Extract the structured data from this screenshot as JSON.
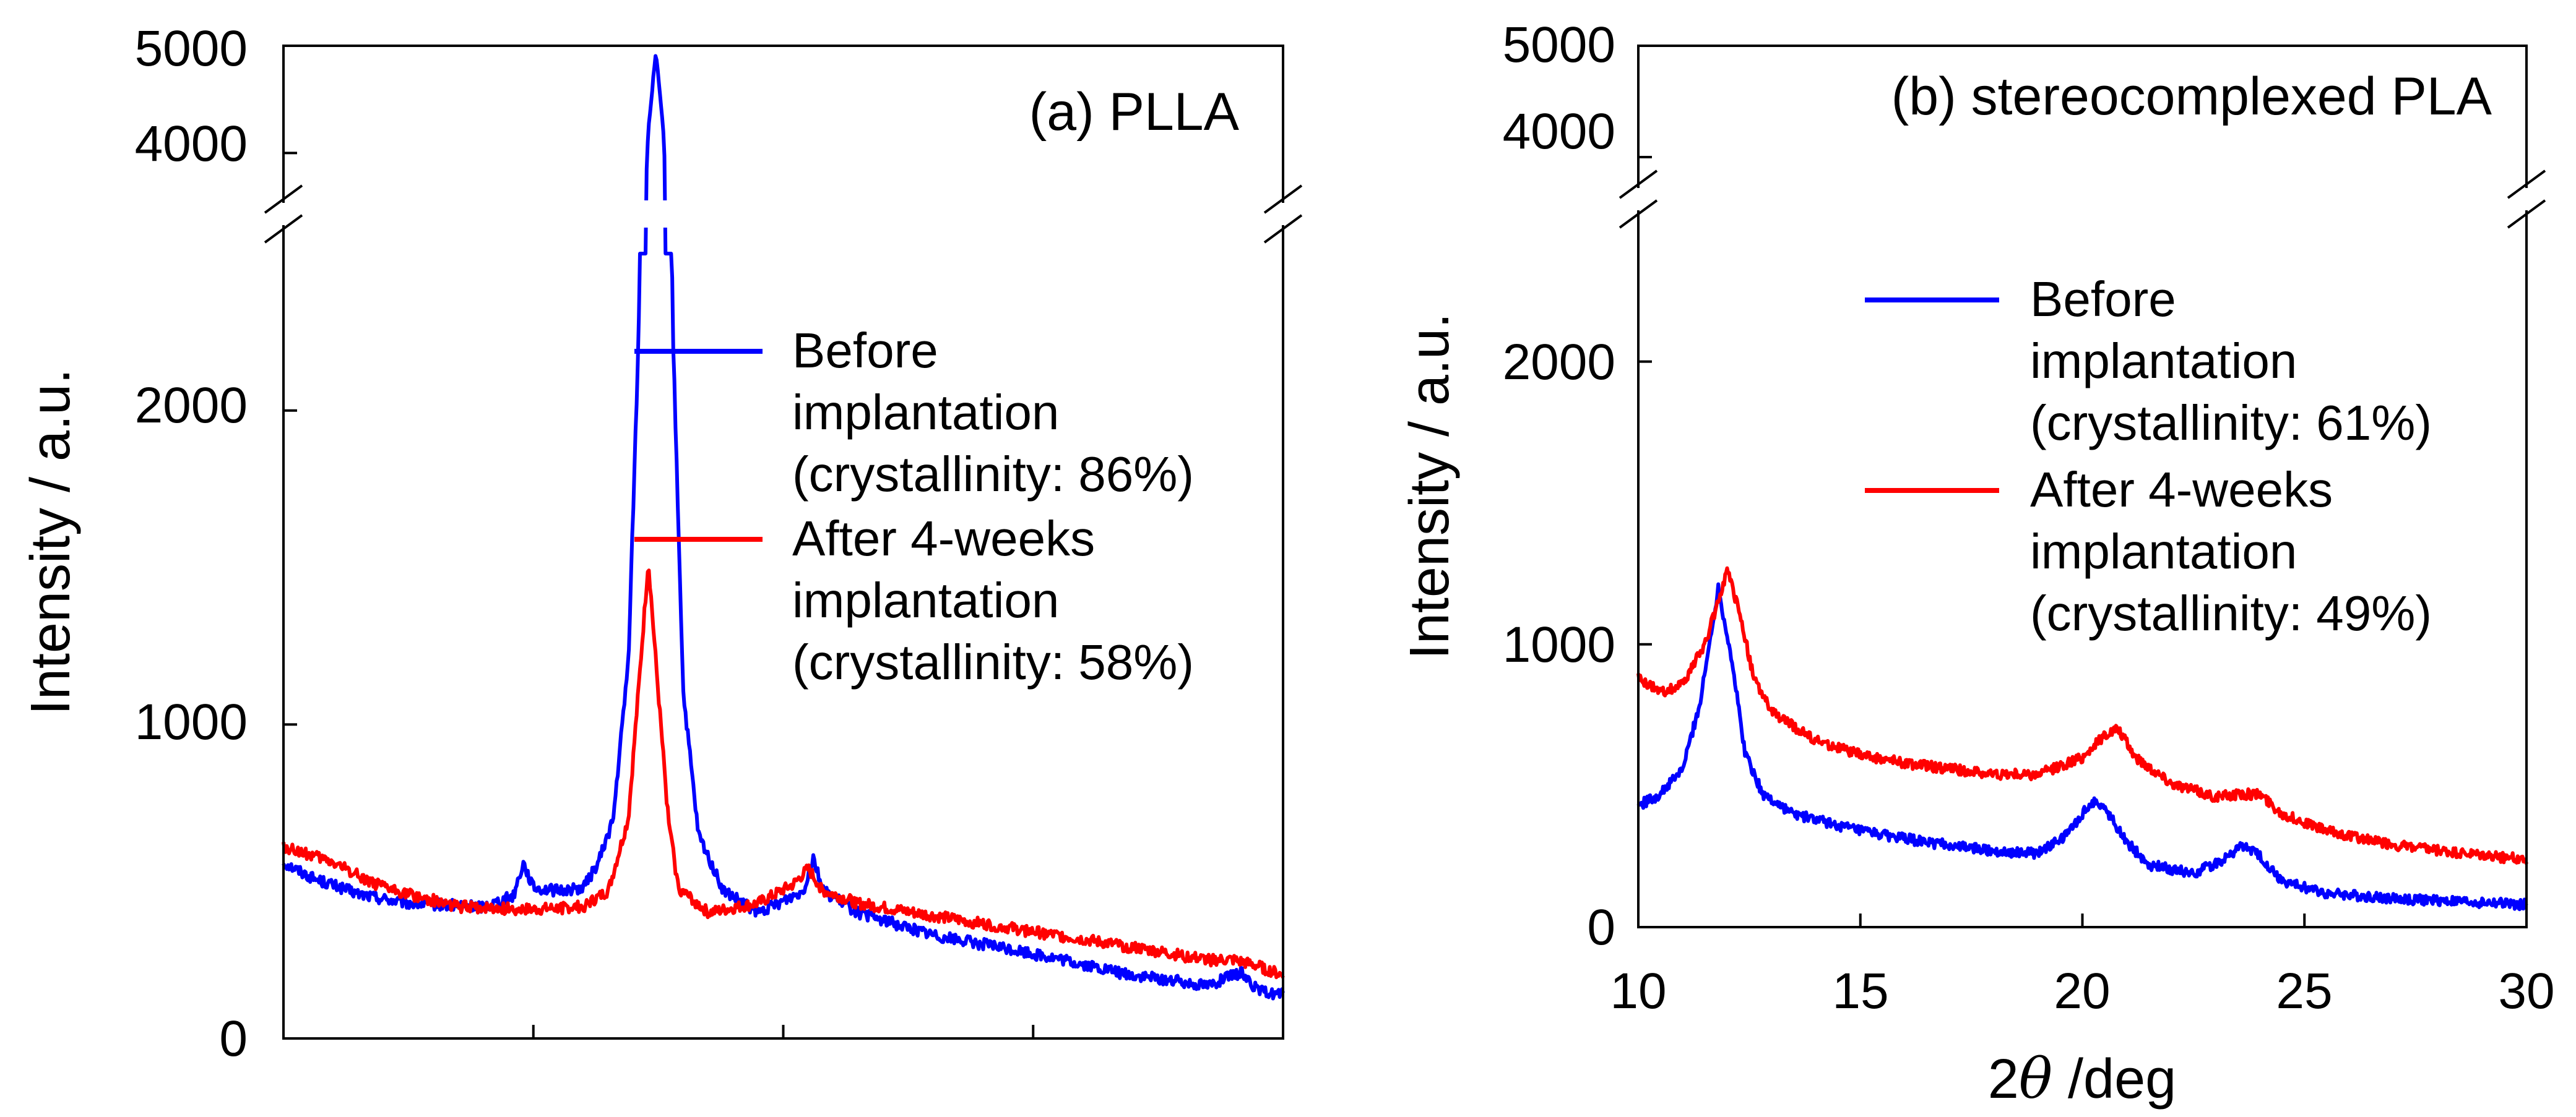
{
  "chart_data": [
    {
      "type": "line",
      "panel_label": "(a) PLLA",
      "ylabel": "Intensity / a.u.",
      "xlabel": "",
      "xlim": [
        10,
        30
      ],
      "ylim_lower": [
        0,
        2500
      ],
      "ylim_upper": [
        3800,
        5000
      ],
      "y_ticks_lower": [
        "0",
        "1000",
        "2000"
      ],
      "y_ticks_upper": [
        "4000",
        "5000"
      ],
      "x_ticks": [
        "",
        "",
        "",
        "",
        ""
      ],
      "grid": false,
      "legend_position": "center-right",
      "series": [
        {
          "name": "Before implantation (crystallinity: 86%)",
          "legend_lines": [
            "Before",
            "implantation",
            "(crystallinity: 86%)"
          ],
          "color": "#0000ff",
          "points": [
            [
              10,
              560
            ],
            [
              10.6,
              510
            ],
            [
              11.5,
              460
            ],
            [
              12.5,
              430
            ],
            [
              14,
              420
            ],
            [
              14.6,
              455
            ],
            [
              14.8,
              560
            ],
            [
              15,
              480
            ],
            [
              15.5,
              470
            ],
            [
              16,
              480
            ],
            [
              16.3,
              560
            ],
            [
              16.6,
              700
            ],
            [
              16.9,
              1200
            ],
            [
              17.1,
              2200
            ],
            [
              17.3,
              4200
            ],
            [
              17.45,
              4950
            ],
            [
              17.6,
              4200
            ],
            [
              17.8,
              2200
            ],
            [
              18,
              1100
            ],
            [
              18.3,
              650
            ],
            [
              18.8,
              470
            ],
            [
              19.5,
              400
            ],
            [
              20.4,
              470
            ],
            [
              20.6,
              580
            ],
            [
              20.8,
              470
            ],
            [
              21.5,
              400
            ],
            [
              23,
              330
            ],
            [
              25,
              270
            ],
            [
              27,
              200
            ],
            [
              28.5,
              170
            ],
            [
              29,
              200
            ],
            [
              29.2,
              210
            ],
            [
              29.5,
              150
            ],
            [
              30,
              140
            ]
          ]
        },
        {
          "name": "After 4-weeks implantation (crystallinity: 58%)",
          "legend_lines": [
            "After 4-weeks",
            "implantation",
            "(crystallinity: 58%)"
          ],
          "color": "#ff0000",
          "points": [
            [
              10,
              610
            ],
            [
              11,
              560
            ],
            [
              12,
              480
            ],
            [
              13.5,
              420
            ],
            [
              15,
              410
            ],
            [
              16,
              420
            ],
            [
              16.5,
              470
            ],
            [
              16.9,
              700
            ],
            [
              17.1,
              1100
            ],
            [
              17.3,
              1520
            ],
            [
              17.5,
              1100
            ],
            [
              17.7,
              700
            ],
            [
              17.9,
              480
            ],
            [
              18.5,
              400
            ],
            [
              19.5,
              430
            ],
            [
              20.2,
              490
            ],
            [
              20.5,
              540
            ],
            [
              20.8,
              470
            ],
            [
              21.5,
              430
            ],
            [
              23,
              390
            ],
            [
              25,
              340
            ],
            [
              27,
              290
            ],
            [
              28.5,
              250
            ],
            [
              29,
              250
            ],
            [
              29.5,
              230
            ],
            [
              30,
              200
            ]
          ]
        }
      ]
    },
    {
      "type": "line",
      "panel_label": "(b) stereocomplexed PLA",
      "ylabel": "Intensity / a.u.",
      "xlabel": "2θ /deg",
      "xlabel_parts": [
        "2",
        "θ",
        " /deg"
      ],
      "xlim": [
        10,
        30
      ],
      "ylim_lower": [
        0,
        2500
      ],
      "ylim_upper": [
        3800,
        5000
      ],
      "y_ticks_lower": [
        "0",
        "1000",
        "2000"
      ],
      "y_ticks_upper": [
        "4000",
        "5000"
      ],
      "x_ticks": [
        "10",
        "15",
        "20",
        "25",
        "30"
      ],
      "grid": false,
      "legend_position": "upper-right",
      "series": [
        {
          "name": "Before implantation (crystallinity: 61%)",
          "legend_lines": [
            "Before",
            "implantation",
            "(crystallinity: 61%)"
          ],
          "color": "#0000ff",
          "points": [
            [
              10,
              430
            ],
            [
              10.5,
              470
            ],
            [
              11,
              560
            ],
            [
              11.4,
              800
            ],
            [
              11.8,
              1200
            ],
            [
              12.1,
              950
            ],
            [
              12.4,
              620
            ],
            [
              12.8,
              470
            ],
            [
              13.5,
              400
            ],
            [
              15,
              340
            ],
            [
              16.5,
              300
            ],
            [
              18,
              270
            ],
            [
              19,
              260
            ],
            [
              19.6,
              320
            ],
            [
              20.1,
              420
            ],
            [
              20.3,
              450
            ],
            [
              20.6,
              400
            ],
            [
              21,
              300
            ],
            [
              21.5,
              220
            ],
            [
              22.5,
              190
            ],
            [
              23.2,
              240
            ],
            [
              23.6,
              290
            ],
            [
              24,
              250
            ],
            [
              24.5,
              160
            ],
            [
              25.5,
              120
            ],
            [
              27,
              100
            ],
            [
              28.5,
              90
            ],
            [
              30,
              80
            ]
          ]
        },
        {
          "name": "After 4-weeks implantation (crystallinity: 49%)",
          "legend_lines": [
            "After 4-weeks",
            "implantation",
            "(crystallinity: 49%)"
          ],
          "color": "#ff0000",
          "points": [
            [
              10,
              880
            ],
            [
              10.5,
              830
            ],
            [
              11,
              860
            ],
            [
              11.5,
              1000
            ],
            [
              12,
              1260
            ],
            [
              12.3,
              1100
            ],
            [
              12.6,
              880
            ],
            [
              13,
              760
            ],
            [
              14,
              660
            ],
            [
              15,
              610
            ],
            [
              16,
              580
            ],
            [
              17,
              560
            ],
            [
              18,
              540
            ],
            [
              19,
              540
            ],
            [
              20,
              600
            ],
            [
              20.5,
              680
            ],
            [
              20.8,
              700
            ],
            [
              21.2,
              600
            ],
            [
              22,
              510
            ],
            [
              23,
              460
            ],
            [
              23.5,
              470
            ],
            [
              24,
              470
            ],
            [
              24.5,
              400
            ],
            [
              25.5,
              340
            ],
            [
              27,
              290
            ],
            [
              28.5,
              260
            ],
            [
              30,
              240
            ]
          ]
        }
      ]
    }
  ]
}
